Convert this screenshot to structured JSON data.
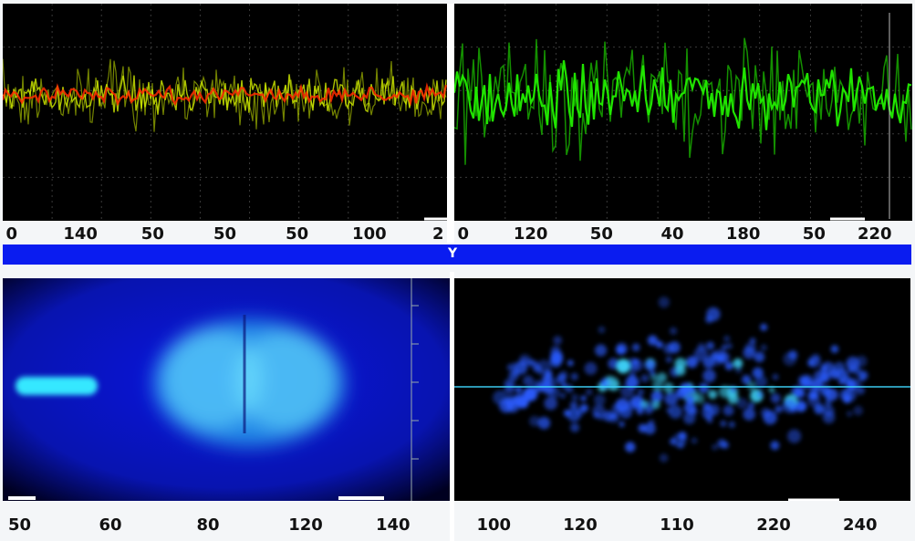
{
  "chart_data": [
    {
      "id": "top-left",
      "type": "line",
      "tick_labels": [
        "0",
        "140",
        "50",
        "50",
        "50",
        "100",
        "2"
      ],
      "colors": {
        "primary": "#d4f000",
        "secondary": "#ff2a00"
      },
      "series": [
        {
          "color": "#d4f000",
          "kind": "noise-band"
        },
        {
          "color": "#ff2a00",
          "kind": "noise-band"
        }
      ]
    },
    {
      "id": "top-right",
      "type": "line",
      "tick_labels": [
        "0",
        "120",
        "50",
        "40",
        "180",
        "50",
        "220"
      ],
      "colors": {
        "primary": "#22ee00"
      },
      "series": [
        {
          "color": "#22ee00",
          "kind": "noise-band"
        }
      ]
    },
    {
      "id": "bottom-left",
      "type": "heatmap",
      "tick_labels": [
        "50",
        "60",
        "80",
        "120",
        "140"
      ],
      "colors": {
        "background": "#0a14e0",
        "glow": "#35e8ff"
      }
    },
    {
      "id": "bottom-right",
      "type": "scatter",
      "tick_labels": [
        "100",
        "120",
        "110",
        "220",
        "240"
      ],
      "colors": {
        "background": "#000000",
        "points": "#2a5cff",
        "glow": "#40d8ff"
      }
    }
  ],
  "divider": {
    "label": "Y",
    "color": "#0a1cf0"
  }
}
